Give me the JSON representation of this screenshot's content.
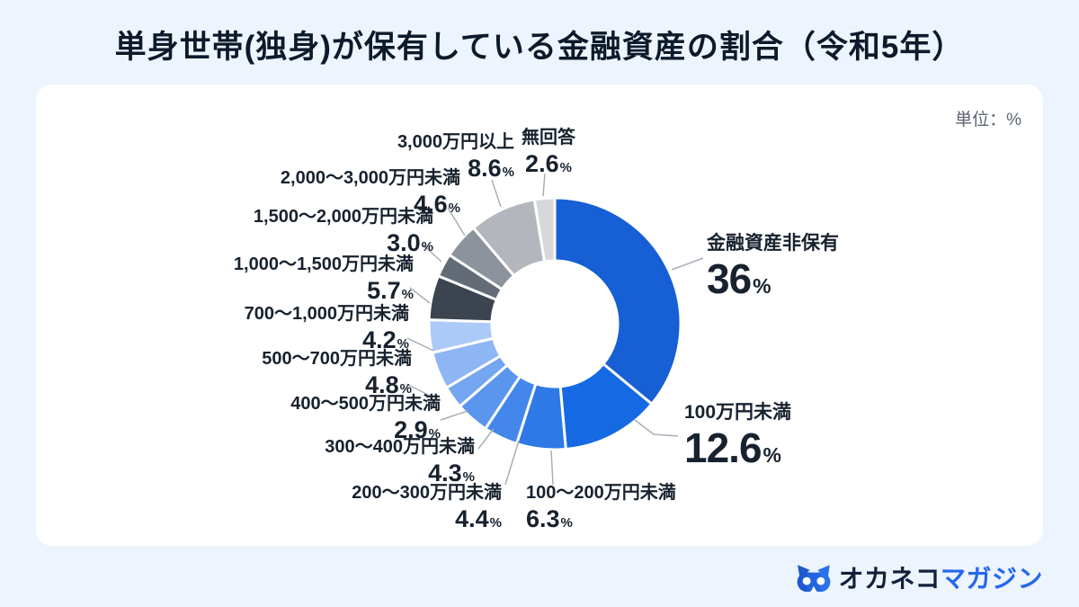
{
  "title": "単身世帯(独身)が保有している金融資産の割合（令和5年）",
  "unit_note": "単位：%",
  "chart_data": {
    "type": "pie",
    "subtype": "donut",
    "title": "単身世帯(独身)が保有している金融資産の割合（令和5年）",
    "unit": "%",
    "start_angle_deg": 0,
    "direction": "clockwise",
    "hole_ratio": 0.5,
    "legend_position": "outside-callouts",
    "slices": [
      {
        "label": "金融資産非保有",
        "value": 36,
        "display": "36",
        "color": "#165fd5"
      },
      {
        "label": "100万円未満",
        "value": 12.6,
        "display": "12.6",
        "color": "#156ae3"
      },
      {
        "label": "100〜200万円未満",
        "value": 6.3,
        "display": "6.3",
        "color": "#2e79e6"
      },
      {
        "label": "200〜300万円未満",
        "value": 4.4,
        "display": "4.4",
        "color": "#4387ea"
      },
      {
        "label": "300〜400万円未満",
        "value": 4.3,
        "display": "4.3",
        "color": "#5a95ee"
      },
      {
        "label": "400〜500万円未満",
        "value": 2.9,
        "display": "2.9",
        "color": "#74a5f0"
      },
      {
        "label": "500〜700万円未満",
        "value": 4.8,
        "display": "4.8",
        "color": "#8eb6f4"
      },
      {
        "label": "700〜1,000万円未満",
        "value": 4.2,
        "display": "4.2",
        "color": "#accaf7"
      },
      {
        "label": "1,000〜1,500万円未満",
        "value": 5.7,
        "display": "5.7",
        "color": "#3b444f"
      },
      {
        "label": "1,500〜2,000万円未満",
        "value": 3.0,
        "display": "3.0",
        "color": "#636b77"
      },
      {
        "label": "2,000〜3,000万円未満",
        "value": 4.6,
        "display": "4.6",
        "color": "#8d939c"
      },
      {
        "label": "3,000万円以上",
        "value": 8.6,
        "display": "8.6",
        "color": "#b3b7bd"
      },
      {
        "label": "無回答",
        "value": 2.6,
        "display": "2.6",
        "color": "#d6d8db"
      }
    ]
  },
  "brand": {
    "name_dark": "オカネコ",
    "name_blue": "マガジン"
  },
  "colors": {
    "background": "#edf4fd",
    "card": "#ffffff",
    "text_dark": "#18222f",
    "leader_line": "#a9aeb7",
    "brand_blue": "#2468ec"
  }
}
